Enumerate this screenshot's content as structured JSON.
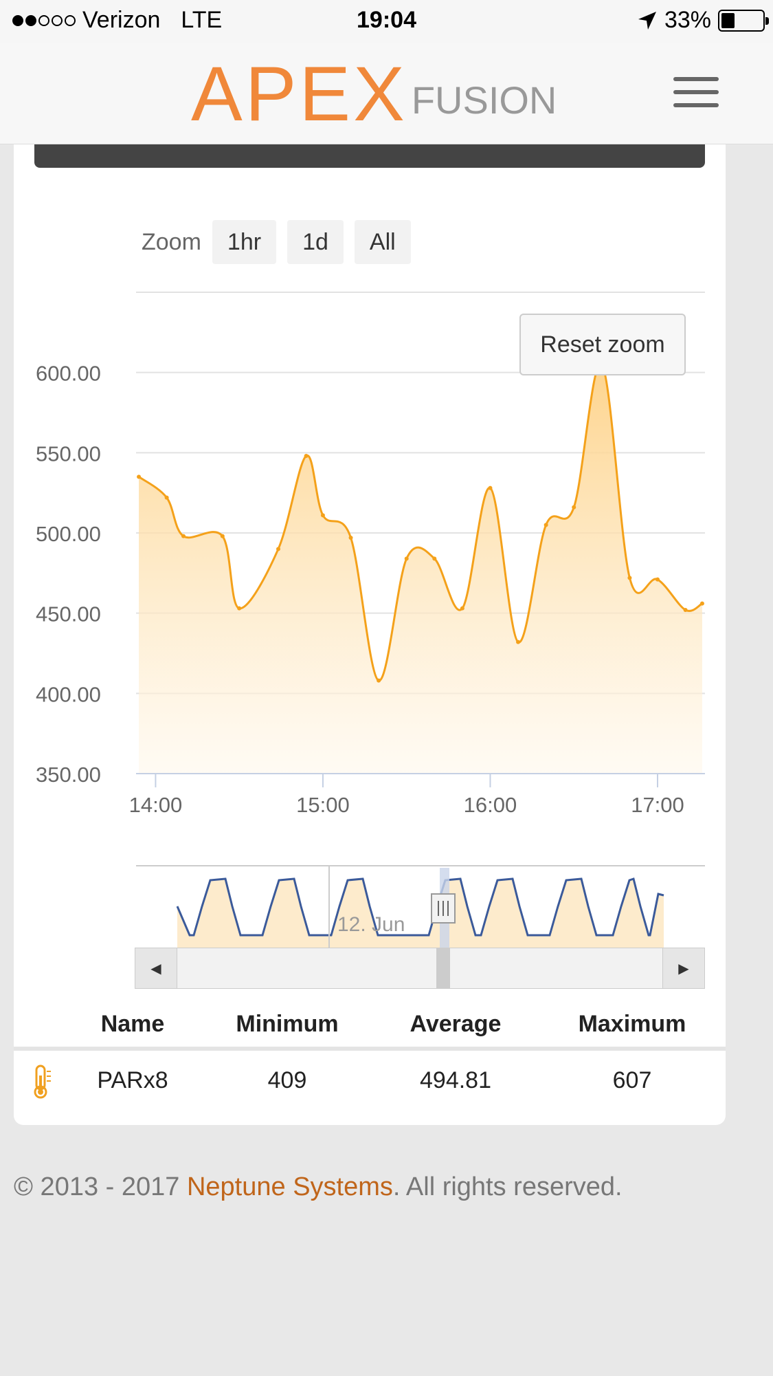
{
  "status_bar": {
    "carrier": "Verizon",
    "network": "LTE",
    "time": "19:04",
    "battery": "33%",
    "battery_level": 0.33
  },
  "header": {
    "logo_main": "APEX",
    "logo_sub": "FUSION",
    "menu_icon": "hamburger-icon"
  },
  "zoom": {
    "label": "Zoom",
    "buttons": [
      "1hr",
      "1d",
      "All"
    ]
  },
  "reset_zoom_label": "Reset zoom",
  "chart_data": {
    "type": "area",
    "ylim": [
      350,
      650
    ],
    "y_ticks": [
      "600.00",
      "550.00",
      "500.00",
      "450.00",
      "400.00",
      "350.00"
    ],
    "x_ticks": [
      "14:00",
      "15:00",
      "16:00",
      "17:00"
    ],
    "x": [
      "13:54",
      "14:04",
      "14:10",
      "14:24",
      "14:30",
      "14:44",
      "14:54",
      "15:00",
      "15:10",
      "15:20",
      "15:30",
      "15:40",
      "15:50",
      "16:00",
      "16:10",
      "16:20",
      "16:30",
      "16:40",
      "16:50",
      "17:00",
      "17:10",
      "17:16"
    ],
    "values": [
      535,
      522,
      498,
      498,
      453,
      490,
      548,
      511,
      497,
      408,
      484,
      484,
      453,
      528,
      432,
      505,
      516,
      605,
      472,
      471,
      452,
      456
    ],
    "navigator_label": "12. Jun",
    "series_color": "#f4a11a"
  },
  "table": {
    "headers": [
      "Name",
      "Minimum",
      "Average",
      "Maximum"
    ],
    "rows": [
      {
        "icon": "thermometer-icon",
        "name": "PARx8",
        "min": "409",
        "avg": "494.81",
        "max": "607"
      }
    ]
  },
  "footer": {
    "prefix": "© 2013 - 2017 ",
    "link": "Neptune Systems",
    "suffix": ". All rights reserved."
  }
}
